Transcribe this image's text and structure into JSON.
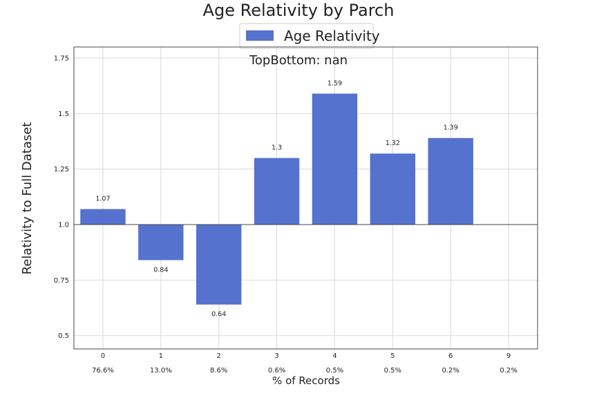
{
  "chart_data": {
    "type": "bar",
    "title": "Age Relativity by Parch",
    "subtitle": "TopBottom: nan",
    "xlabel": "% of Records",
    "ylabel": "Relativity to Full Dataset",
    "baseline": 1.0,
    "categories": [
      "0",
      "1",
      "2",
      "3",
      "4",
      "5",
      "6",
      "9"
    ],
    "record_pct": [
      "76.6%",
      "13.0%",
      "8.6%",
      "0.6%",
      "0.5%",
      "0.5%",
      "0.2%",
      "0.2%"
    ],
    "series": [
      {
        "name": "Age Relativity",
        "values": [
          1.07,
          0.84,
          0.64,
          1.3,
          1.59,
          1.32,
          1.39,
          null
        ],
        "labels": [
          "1.07",
          "0.84",
          "0.64",
          "1.3",
          "1.59",
          "1.32",
          "1.39",
          ""
        ],
        "color": "#5572cf"
      }
    ],
    "yticks": [
      "0.5",
      "0.75",
      "1.0",
      "1.25",
      "1.5",
      "1.75"
    ],
    "ylim": [
      0.44,
      1.8
    ],
    "grid": true,
    "legend": "top-center"
  }
}
